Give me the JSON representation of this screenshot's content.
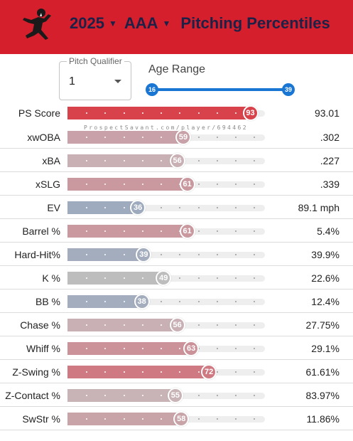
{
  "header": {
    "season": "2025",
    "level": "AAA",
    "title": "Pitching Percentiles",
    "logo_icon": "pitcher-silhouette-icon",
    "background_color": "#d61f2c",
    "title_color": "#1b2147"
  },
  "controls": {
    "pitch_qualifier_label": "Pitch Qualifier",
    "pitch_qualifier_value": "1",
    "age_range_label": "Age Range",
    "age_min": "16",
    "age_max": "39",
    "slider_color": "#1976d2"
  },
  "watermark": "ProspectSavant.com/player/694462",
  "metrics": [
    {
      "label": "PS Score",
      "percentile": 93,
      "value": "93.01",
      "color": "#d7424b"
    },
    {
      "label": "xwOBA",
      "percentile": 59,
      "value": ".302",
      "color": "#c8a2a8"
    },
    {
      "label": "xBA",
      "percentile": 56,
      "value": ".227",
      "color": "#c8b0b4"
    },
    {
      "label": "xSLG",
      "percentile": 61,
      "value": ".339",
      "color": "#c9999f"
    },
    {
      "label": "EV",
      "percentile": 36,
      "value": "89.1 mph",
      "color": "#9eaabd"
    },
    {
      "label": "Barrel %",
      "percentile": 61,
      "value": "5.4%",
      "color": "#c9999f"
    },
    {
      "label": "Hard-Hit%",
      "percentile": 39,
      "value": "39.9%",
      "color": "#a3adbd"
    },
    {
      "label": "K %",
      "percentile": 49,
      "value": "22.6%",
      "color": "#bdbdbe"
    },
    {
      "label": "BB %",
      "percentile": 38,
      "value": "12.4%",
      "color": "#a3adbd"
    },
    {
      "label": "Chase %",
      "percentile": 56,
      "value": "27.75%",
      "color": "#c8b0b4"
    },
    {
      "label": "Whiff %",
      "percentile": 63,
      "value": "29.1%",
      "color": "#cb9299"
    },
    {
      "label": "Z-Swing %",
      "percentile": 72,
      "value": "61.61%",
      "color": "#cf7a82"
    },
    {
      "label": "Z-Contact %",
      "percentile": 55,
      "value": "83.97%",
      "color": "#c8b3b6"
    },
    {
      "label": "SwStr %",
      "percentile": 58,
      "value": "11.86%",
      "color": "#c8a4a9"
    }
  ]
}
